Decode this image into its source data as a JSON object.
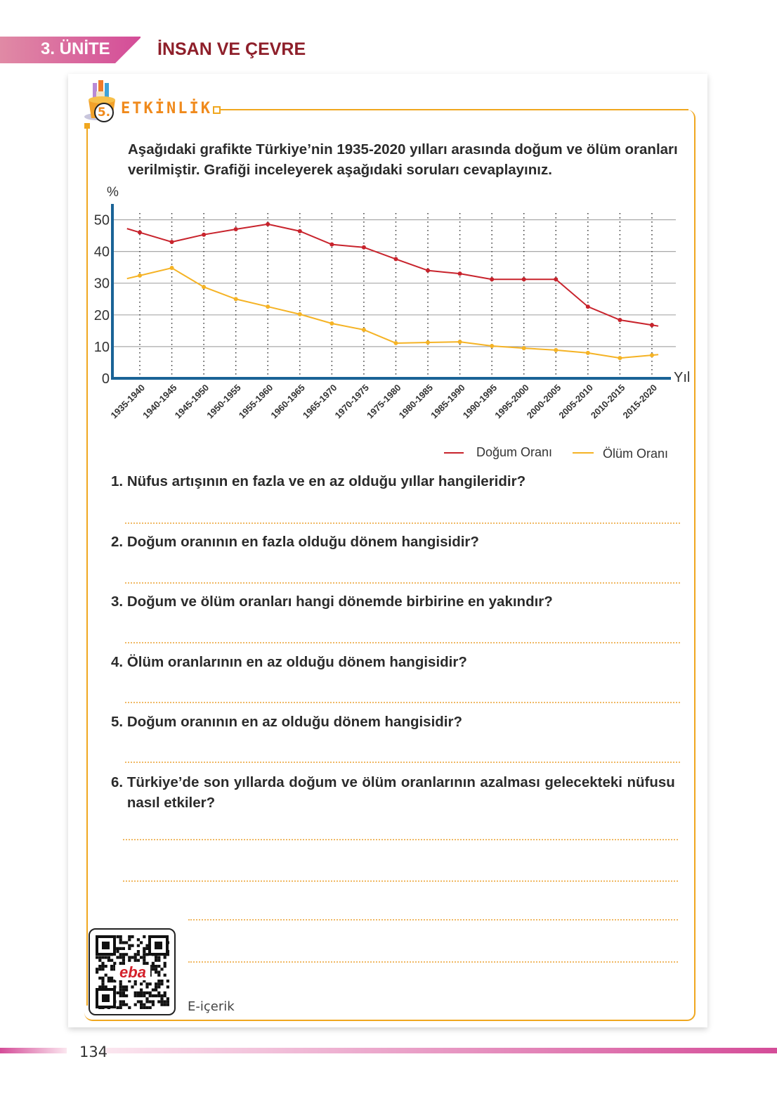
{
  "header": {
    "unit": "3. ÜNİTE",
    "chapter": "İNSAN VE ÇEVRE"
  },
  "activity": {
    "number": "5.",
    "title": "ETKİNLİK",
    "icon": "pencil-cup-icon"
  },
  "intro": "Aşağıdaki grafikte Türkiye’nin 1935-2020 yılları arasında doğum ve ölüm oranları verilmiştir. Grafiği inceleyerek aşağıdaki soruları cevaplayınız.",
  "chart_data": {
    "type": "line",
    "ylabel": "%",
    "xlabel": "Yıl",
    "ylim": [
      0,
      50
    ],
    "yticks": [
      "0",
      "10",
      "20",
      "30",
      "40",
      "50"
    ],
    "grid": true,
    "legend_position": "bottom-right",
    "categories": [
      "1935-1940",
      "1940-1945",
      "1945-1950",
      "1950-1955",
      "1955-1960",
      "1960-1965",
      "1965-1970",
      "1970-1975",
      "1975-1980",
      "1980-1985",
      "1985-1990",
      "1990-1995",
      "1995-2000",
      "2000-2005",
      "2005-2010",
      "2010-2015",
      "2015-2020"
    ],
    "series": [
      {
        "name": "Doğum Oranı",
        "color": "#c8232c",
        "values": [
          46,
          43,
          45.3,
          47,
          48.6,
          46.4,
          42.2,
          41.3,
          37.6,
          34,
          33,
          31.2,
          31.2,
          31.2,
          22.6,
          18.4,
          16.8
        ]
      },
      {
        "name": "Ölüm Oranı",
        "color": "#f5b325",
        "values": [
          32.4,
          34.8,
          28.8,
          25,
          22.6,
          20.2,
          17.3,
          15.3,
          11.1,
          11.3,
          11.5,
          10.2,
          9.5,
          8.9,
          8,
          6.4,
          7.3
        ]
      }
    ]
  },
  "questions": [
    {
      "num": "1.",
      "text": "Nüfus artışının en fazla ve en az olduğu yıllar hangileridir?"
    },
    {
      "num": "2.",
      "text": "Doğum oranının en fazla olduğu dönem hangisidir?"
    },
    {
      "num": "3.",
      "text": "Doğum ve ölüm oranları hangi dönemde birbirine en yakındır?"
    },
    {
      "num": "4.",
      "text": "Ölüm oranlarının en az olduğu dönem hangisidir?"
    },
    {
      "num": "5.",
      "text": "Doğum oranının en az olduğu dönem hangisidir?"
    },
    {
      "num": "6.",
      "text": "Türkiye’de son yıllarda doğum ve ölüm oranlarının azalması gelecekteki nüfusu nasıl etkiler?"
    }
  ],
  "qr": {
    "logo": "eba",
    "label": "E-içerik"
  },
  "page_number": "134",
  "colors": {
    "accent": "#f0a71f",
    "chapter": "#8e1f2a",
    "unit_band": "#d44c98",
    "axis": "#1a6396"
  }
}
